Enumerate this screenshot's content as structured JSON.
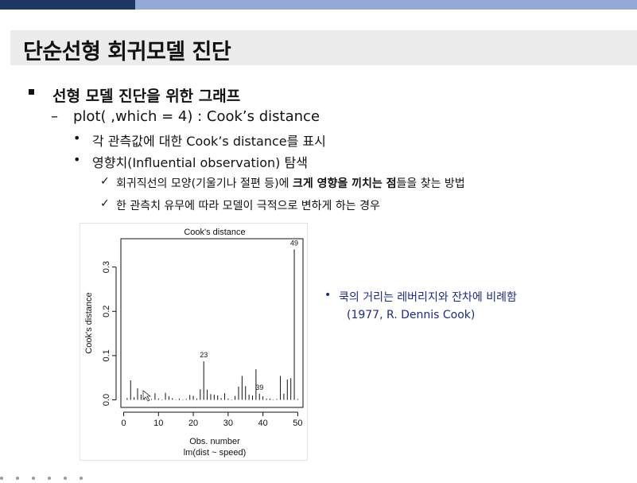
{
  "slide": {
    "title": "단순선형 회귀모델 진단",
    "l1": "선형 모델 진단을 위한 그래프",
    "l2": "plot( ,which = 4) : Cook’s distance",
    "l3a": "각 관측값에 대한 Cook’s distance를 표시",
    "l3b": "영향치(Influential observation) 탐색",
    "l4a_pre": "회귀직선의 모양(기울기나 절편 등)에 ",
    "l4a_bold": "크게 영향을 끼치는 점",
    "l4a_post": "들을 찾는 방법",
    "l4b": "한 관측치 유무에 따라 모델이 극적으로 변하게 하는 경우",
    "note": "쿡의 거리는 레버리지와 잔차에 비례함",
    "note2": "(1977, R. Dennis Cook)"
  },
  "chart_data": {
    "type": "bar",
    "title": "Cook's distance",
    "xlabel": "Obs. number",
    "sublabel": "lm(dist ~ speed)",
    "ylabel": "Cook's distance",
    "xlim": [
      1,
      50
    ],
    "ylim": [
      0,
      0.34
    ],
    "xticks": [
      0,
      10,
      20,
      30,
      40,
      50
    ],
    "yticks": [
      "0.0",
      "0.1",
      "0.2",
      "0.3"
    ],
    "x": [
      1,
      2,
      3,
      4,
      5,
      6,
      7,
      8,
      9,
      10,
      11,
      12,
      13,
      14,
      15,
      16,
      17,
      18,
      19,
      20,
      21,
      22,
      23,
      24,
      25,
      26,
      27,
      28,
      29,
      30,
      31,
      32,
      33,
      34,
      35,
      36,
      37,
      38,
      39,
      40,
      41,
      42,
      43,
      44,
      45,
      46,
      47,
      48,
      49,
      50
    ],
    "values": [
      0.004,
      0.044,
      0.006,
      0.026,
      0.012,
      0.003,
      0.004,
      0.002,
      0.015,
      0.003,
      0.001,
      0.016,
      0.008,
      0.004,
      0.001,
      0.003,
      0.001,
      0.002,
      0.011,
      0.009,
      0.003,
      0.024,
      0.087,
      0.023,
      0.013,
      0.012,
      0.01,
      0.004,
      0.015,
      0.003,
      0.001,
      0.009,
      0.03,
      0.054,
      0.031,
      0.012,
      0.01,
      0.069,
      0.014,
      0.008,
      0.003,
      0.003,
      0.001,
      0.002,
      0.054,
      0.014,
      0.046,
      0.049,
      0.34,
      0.002
    ],
    "labeled_points": [
      {
        "x": 23,
        "label": "23"
      },
      {
        "x": 39,
        "label": "39"
      },
      {
        "x": 49,
        "label": "49"
      }
    ]
  },
  "icons": {
    "bullet": "square-bullet-icon",
    "check": "checkmark-icon",
    "cursor": "mouse-cursor-icon"
  }
}
